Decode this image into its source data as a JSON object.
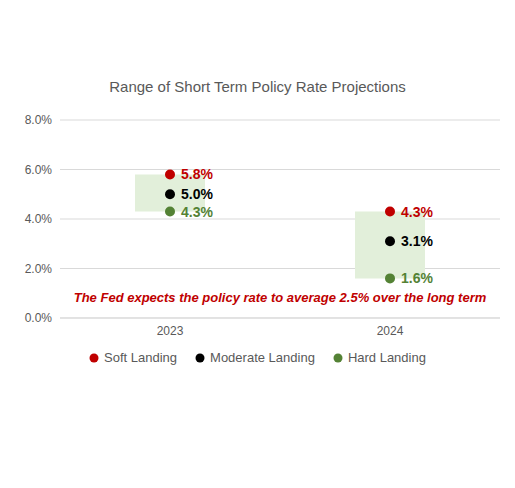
{
  "chart_data": {
    "type": "range",
    "title": "Range of Short Term Policy Rate Projections",
    "categories": [
      "2023",
      "2024"
    ],
    "color": "#e2efda",
    "series": [
      {
        "name": "Soft Landing",
        "color": "#c00000",
        "marker": "circle",
        "values": [
          5.8,
          4.3
        ],
        "value_labels": [
          "5.8%",
          "4.3%"
        ]
      },
      {
        "name": "Moderate Landing",
        "color": "#000000",
        "marker": "circle",
        "values": [
          5.0,
          3.1
        ],
        "value_labels": [
          "5.0%",
          "3.1%"
        ]
      },
      {
        "name": "Hard Landing",
        "color": "#548235",
        "marker": "circle",
        "values": [
          4.3,
          1.6
        ],
        "value_labels": [
          "4.3%",
          "1.6%"
        ]
      }
    ],
    "ylim": [
      0,
      8
    ],
    "yticks": [
      {
        "value": 0,
        "label": "0.0%"
      },
      {
        "value": 2,
        "label": "2.0%"
      },
      {
        "value": 4,
        "label": "4.0%"
      },
      {
        "value": 6,
        "label": "6.0%"
      },
      {
        "value": 8,
        "label": "8.0%"
      }
    ],
    "grid": true,
    "data_labels": true,
    "annotation": "The Fed expects the policy rate to average 2.5% over the long term",
    "legend": "bottom"
  }
}
